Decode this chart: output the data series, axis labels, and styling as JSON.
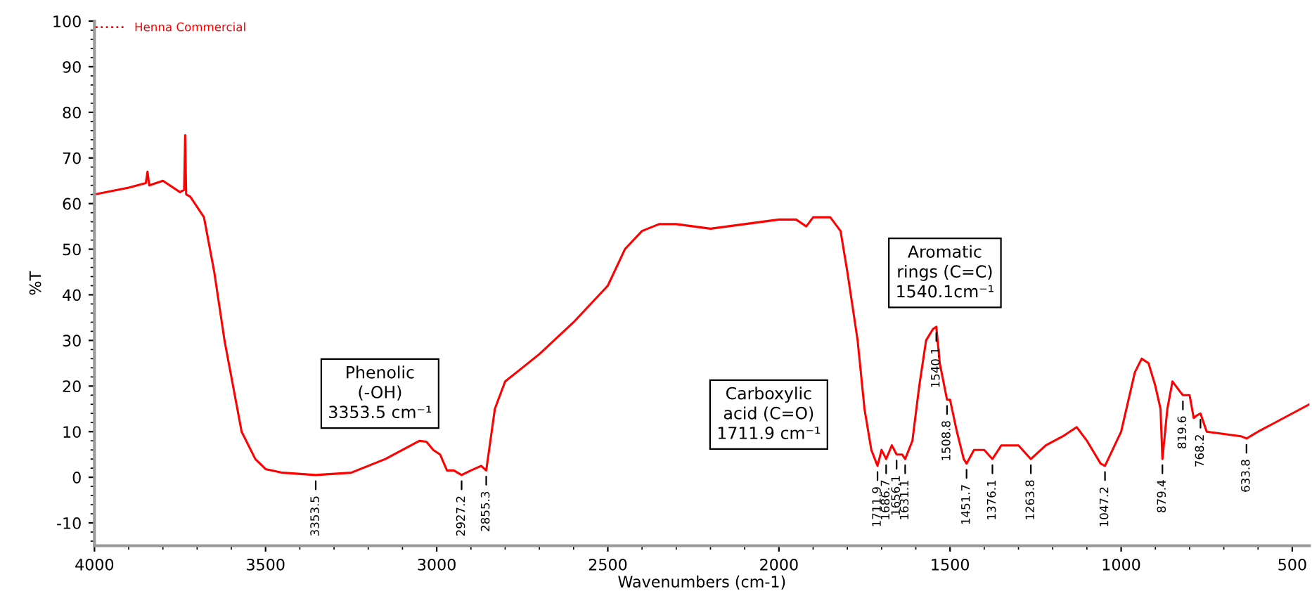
{
  "chart_data": {
    "type": "line",
    "xlabel": "Wavenumbers (cm-1)",
    "ylabel": "%T",
    "xlim": [
      4000,
      450
    ],
    "ylim": [
      -15,
      100
    ],
    "xticks": [
      4000,
      3500,
      3000,
      2500,
      2000,
      1500,
      1000,
      500
    ],
    "yticks": [
      -10,
      0,
      10,
      20,
      30,
      40,
      50,
      60,
      70,
      80,
      90,
      100
    ],
    "grid": false,
    "legend": "top left",
    "marker": "none",
    "line_style": "solid",
    "series": [
      {
        "name": "Henna Commercial",
        "color": "#ff0000",
        "x": [
          4000,
          3900,
          3850,
          3845,
          3840,
          3800,
          3750,
          3738,
          3735,
          3732,
          3720,
          3680,
          3650,
          3620,
          3600,
          3570,
          3530,
          3500,
          3450,
          3353.5,
          3250,
          3200,
          3150,
          3100,
          3050,
          3030,
          3010,
          2990,
          2970,
          2950,
          2927.2,
          2900,
          2870,
          2855.3,
          2830,
          2800,
          2750,
          2700,
          2600,
          2500,
          2450,
          2400,
          2350,
          2300,
          2200,
          2100,
          2000,
          1950,
          1920,
          1900,
          1850,
          1820,
          1800,
          1770,
          1750,
          1730,
          1711.9,
          1700,
          1686.7,
          1670,
          1656.1,
          1640,
          1631.1,
          1610,
          1590,
          1570,
          1550,
          1540.1,
          1530,
          1508.8,
          1500,
          1480,
          1460,
          1451.7,
          1430,
          1400,
          1376.1,
          1350,
          1300,
          1263.8,
          1220,
          1170,
          1130,
          1100,
          1060,
          1047.2,
          1000,
          960,
          940,
          920,
          900,
          885,
          879.4,
          865,
          850,
          830,
          819.6,
          800,
          788,
          780,
          768.2,
          750,
          700,
          650,
          633.8,
          600,
          550,
          500,
          450
        ],
        "values": [
          62,
          63.5,
          64.5,
          67,
          64,
          65,
          62.5,
          63,
          75,
          62,
          61.5,
          57,
          45,
          30,
          22,
          10,
          4,
          1.8,
          1,
          0.5,
          1,
          2.5,
          4,
          6,
          8,
          7.8,
          6,
          5,
          1.5,
          1.5,
          0.5,
          1.5,
          2.5,
          1.5,
          15,
          21,
          24,
          27,
          34,
          42,
          50,
          54,
          55.5,
          55.5,
          54.5,
          55.5,
          56.5,
          56.5,
          55,
          57,
          57,
          54,
          45,
          30,
          15,
          6,
          2.5,
          6,
          4,
          7,
          5,
          5,
          4,
          8,
          20,
          30,
          32.5,
          33,
          25,
          17,
          17,
          10,
          4,
          3,
          6,
          6,
          4,
          7,
          7,
          4,
          7,
          9,
          11,
          8,
          3,
          2.5,
          10,
          23,
          26,
          25,
          20,
          15,
          4,
          15,
          21,
          19,
          18,
          18,
          13,
          13.5,
          14,
          10,
          9.5,
          9,
          8.5,
          10,
          12,
          14,
          16
        ]
      }
    ],
    "annotations": [
      "Phenolic\n(-OH)\n3353.5 cm⁻¹",
      "Carboxylic\nacid (C=O)\n1711.9 cm⁻¹",
      "Aromatic\nrings (C=C)\n1540.1cm⁻¹",
      {
        "text": "3353.5",
        "x": 3353.5,
        "y": 0.5
      },
      {
        "text": "2927.2",
        "x": 2927.2,
        "y": 0.5
      },
      {
        "text": "2855.3",
        "x": 2855.3,
        "y": 1.5
      },
      {
        "text": "1711.9",
        "x": 1711.9,
        "y": 2.5
      },
      {
        "text": "1686.7",
        "x": 1686.7,
        "y": 4
      },
      {
        "text": "1656.1",
        "x": 1656.1,
        "y": 5
      },
      {
        "text": "1631.1",
        "x": 1631.1,
        "y": 4
      },
      {
        "text": "1540.1",
        "x": 1540.1,
        "y": 33
      },
      {
        "text": "1508.8",
        "x": 1508.8,
        "y": 17
      },
      {
        "text": "1451.7",
        "x": 1451.7,
        "y": 3
      },
      {
        "text": "1376.1",
        "x": 1376.1,
        "y": 4
      },
      {
        "text": "1263.8",
        "x": 1263.8,
        "y": 4
      },
      {
        "text": "1047.2",
        "x": 1047.2,
        "y": 2.5
      },
      {
        "text": "879.4",
        "x": 879.4,
        "y": 4
      },
      {
        "text": "819.6",
        "x": 819.6,
        "y": 18
      },
      {
        "text": "768.2",
        "x": 768.2,
        "y": 14
      },
      {
        "text": "633.8",
        "x": 633.8,
        "y": 8.5
      }
    ]
  }
}
